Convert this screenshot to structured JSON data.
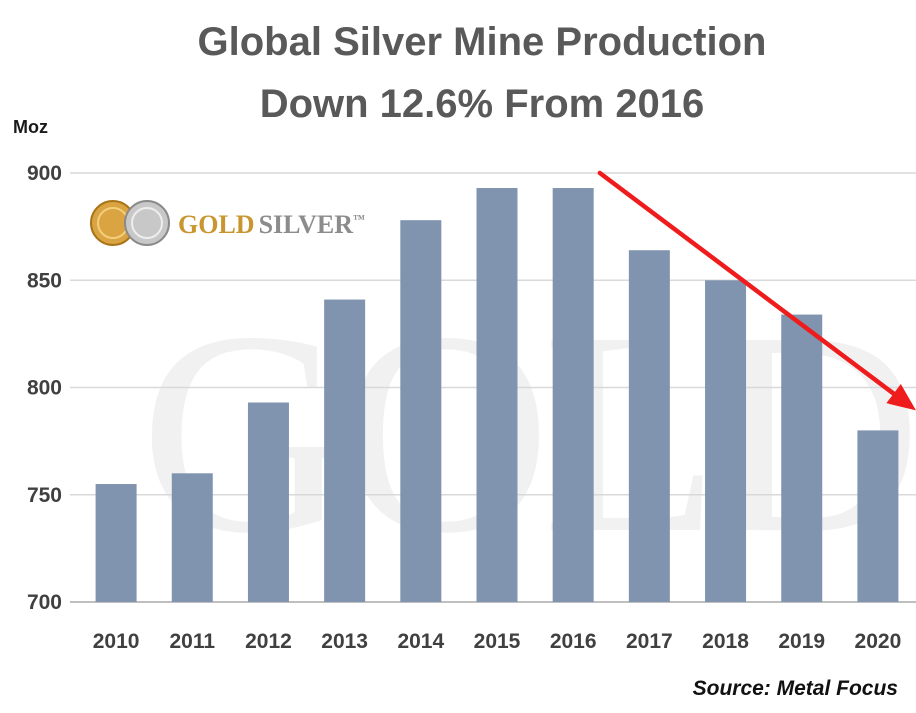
{
  "chart_data": {
    "type": "bar",
    "title_lines": [
      "Global Silver Mine Production",
      "Down 12.6% From 2016"
    ],
    "ylabel": "Moz",
    "xlabel": "",
    "categories": [
      "2010",
      "2011",
      "2012",
      "2013",
      "2014",
      "2015",
      "2016",
      "2017",
      "2018",
      "2019",
      "2020"
    ],
    "values": [
      755,
      760,
      793,
      841,
      878,
      893,
      893,
      864,
      850,
      834,
      780
    ],
    "ylim": [
      700,
      900
    ],
    "yticks": [
      700,
      750,
      800,
      850,
      900
    ],
    "grid": true,
    "source": "Source: Metal Focus",
    "annotation": {
      "type": "trend-arrow",
      "from": "2016",
      "to": "2020"
    },
    "colors": {
      "bar": "#8094b0",
      "arrow": "#ee1c1c",
      "grid": "#d9d9d9"
    }
  },
  "logo": {
    "text_gold": "GOLD",
    "text_silver": "SILVER",
    "mark": "™",
    "watermark": "GOLDSILVER",
    "gold_color": "#c9952e",
    "silver_color": "#8c8c8c"
  }
}
